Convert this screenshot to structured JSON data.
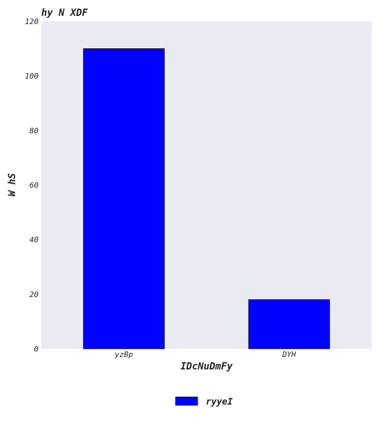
{
  "chart_data": {
    "type": "bar",
    "title": "hy N XDF",
    "xlabel": "IDcNuDmFy",
    "ylabel": "W hS",
    "categories": [
      "yzBp",
      "DYH"
    ],
    "series": [
      {
        "name": "ryyeI",
        "values": [
          110,
          18
        ],
        "color": "#0000ff"
      }
    ],
    "ylim": [
      0,
      120
    ],
    "yticks": [
      0,
      20,
      40,
      60,
      80,
      100,
      120
    ],
    "grid": false,
    "legend_position": "bottom-center",
    "background_color": "#eaeaf2"
  }
}
